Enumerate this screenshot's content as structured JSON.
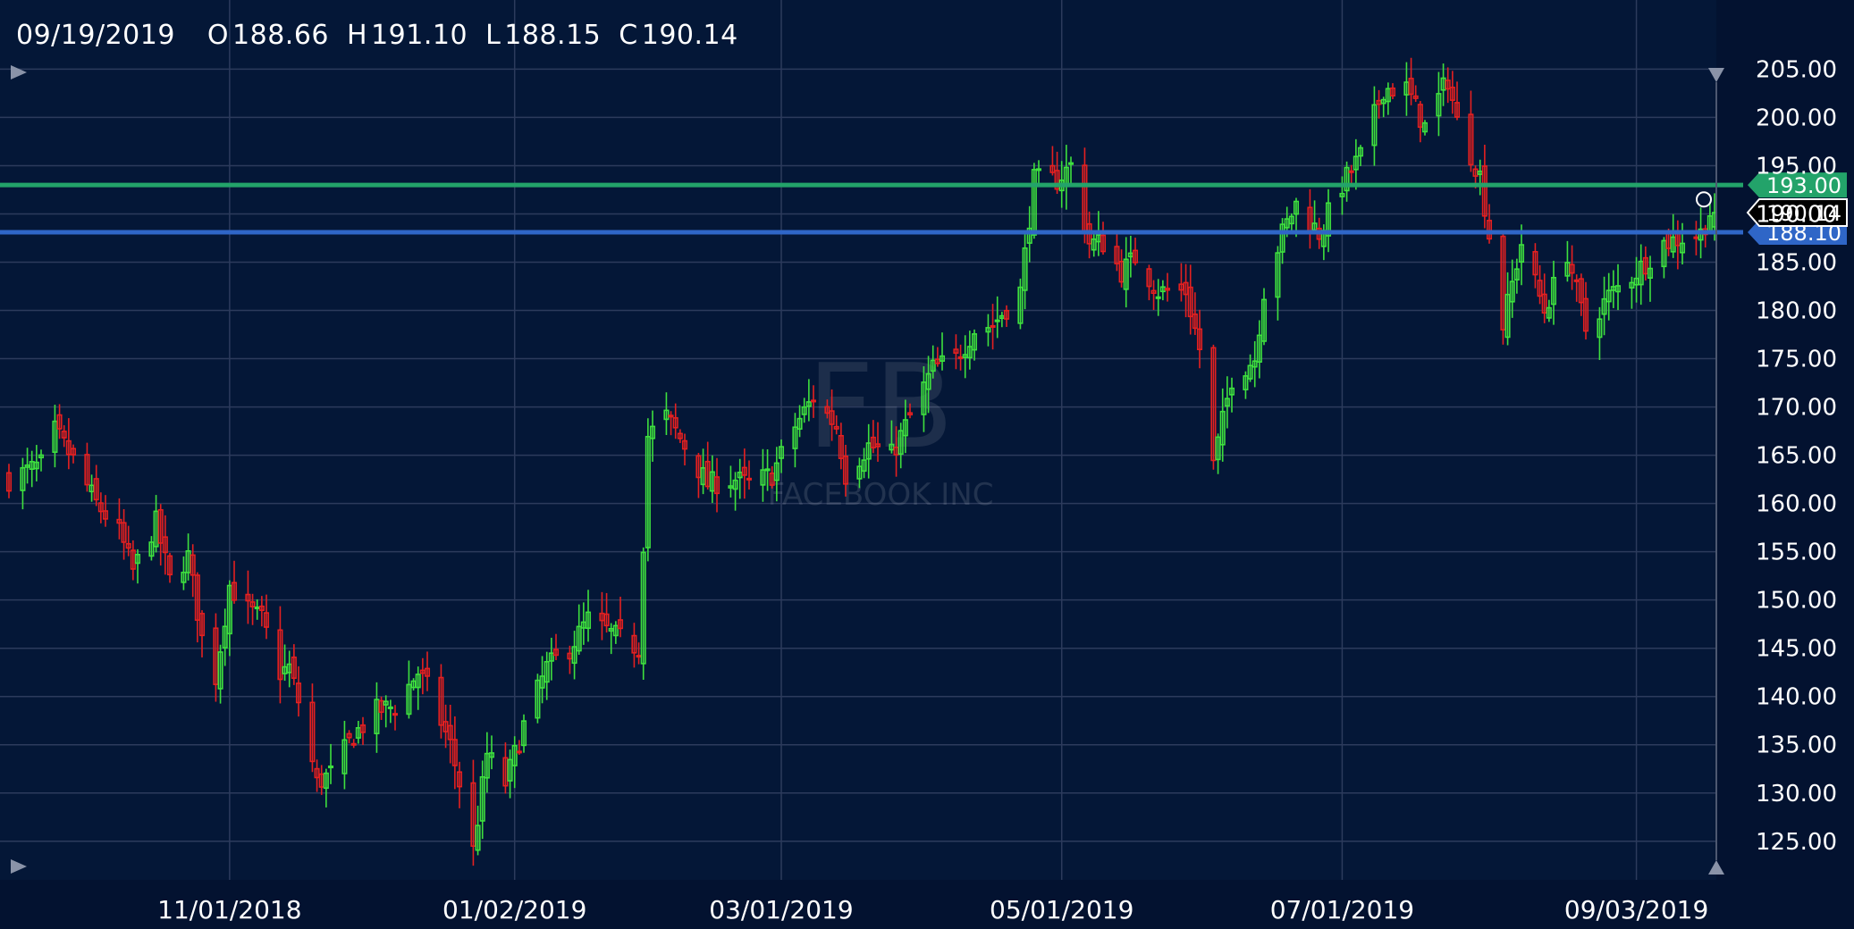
{
  "header": {
    "date": "09/19/2019",
    "open_label": "O",
    "open": "188.66",
    "high_label": "H",
    "high": "191.10",
    "low_label": "L",
    "low": "188.15",
    "close_label": "C",
    "close": "190.14"
  },
  "watermark": {
    "symbol": "FB",
    "name": "FACEBOOK INC"
  },
  "colors": {
    "background": "#041737",
    "grid": "#2c3b5c",
    "up": "#3ee03e",
    "down": "#e52020",
    "resistance": "#23a36a",
    "support": "#2f66c7",
    "axis_panel": "#031230"
  },
  "chart_data": {
    "type": "candlestick",
    "symbol": "FB",
    "ylim": [
      121,
      208
    ],
    "y_ticks": [
      "125.00",
      "130.00",
      "135.00",
      "140.00",
      "145.00",
      "150.00",
      "155.00",
      "160.00",
      "165.00",
      "170.00",
      "175.00",
      "180.00",
      "185.00",
      "190.00",
      "195.00",
      "200.00",
      "205.00"
    ],
    "x_range": [
      "2018-09-14",
      "2019-09-20"
    ],
    "x_ticks": [
      {
        "date": "2018-11-01",
        "label": "11/01/2018"
      },
      {
        "date": "2019-01-02",
        "label": "01/02/2019"
      },
      {
        "date": "2019-03-01",
        "label": "03/01/2019"
      },
      {
        "date": "2019-05-01",
        "label": "05/01/2019"
      },
      {
        "date": "2019-07-01",
        "label": "07/01/2019"
      },
      {
        "date": "2019-09-03",
        "label": "09/03/2019"
      }
    ],
    "grid": true,
    "horizontal_lines": [
      {
        "value": 193.0,
        "label": "193.00",
        "color": "#23a36a"
      },
      {
        "value": 188.1,
        "label": "188.10",
        "color": "#2f66c7"
      }
    ],
    "last_price": {
      "value": 190.14,
      "label": "190.14"
    },
    "series": [
      {
        "close_points": [
          [
            "2018-09-14",
            162.5
          ],
          [
            "2018-09-21",
            164.0
          ],
          [
            "2018-09-24",
            167.5
          ],
          [
            "2018-09-28",
            164.5
          ],
          [
            "2018-10-03",
            160.0
          ],
          [
            "2018-10-08",
            157.0
          ],
          [
            "2018-10-11",
            153.0
          ],
          [
            "2018-10-16",
            158.0
          ],
          [
            "2018-10-19",
            152.0
          ],
          [
            "2018-10-23",
            154.5
          ],
          [
            "2018-10-26",
            146.0
          ],
          [
            "2018-10-29",
            142.0
          ],
          [
            "2018-11-01",
            151.5
          ],
          [
            "2018-11-05",
            149.0
          ],
          [
            "2018-11-08",
            148.0
          ],
          [
            "2018-11-12",
            142.5
          ],
          [
            "2018-11-14",
            143.0
          ],
          [
            "2018-11-16",
            139.5
          ],
          [
            "2018-11-20",
            131.0
          ],
          [
            "2018-11-23",
            132.0
          ],
          [
            "2018-11-28",
            136.0
          ],
          [
            "2018-12-03",
            138.5
          ],
          [
            "2018-12-07",
            139.0
          ],
          [
            "2018-12-12",
            142.5
          ],
          [
            "2018-12-14",
            141.0
          ],
          [
            "2018-12-19",
            135.0
          ],
          [
            "2018-12-21",
            131.0
          ],
          [
            "2018-12-24",
            124.0
          ],
          [
            "2018-12-27",
            134.0
          ],
          [
            "2018-12-31",
            131.0
          ],
          [
            "2019-01-04",
            137.0
          ],
          [
            "2019-01-09",
            143.0
          ],
          [
            "2019-01-14",
            145.0
          ],
          [
            "2019-01-18",
            148.0
          ],
          [
            "2019-01-23",
            146.5
          ],
          [
            "2019-01-25",
            146.0
          ],
          [
            "2019-01-29",
            145.0
          ],
          [
            "2019-01-31",
            167.0
          ],
          [
            "2019-02-04",
            169.0
          ],
          [
            "2019-02-08",
            166.0
          ],
          [
            "2019-02-13",
            162.0
          ],
          [
            "2019-02-19",
            162.5
          ],
          [
            "2019-02-22",
            162.0
          ],
          [
            "2019-02-27",
            163.0
          ],
          [
            "2019-03-04",
            168.0
          ],
          [
            "2019-03-08",
            171.0
          ],
          [
            "2019-03-13",
            168.0
          ],
          [
            "2019-03-15",
            163.0
          ],
          [
            "2019-03-20",
            166.0
          ],
          [
            "2019-03-25",
            165.0
          ],
          [
            "2019-03-29",
            169.0
          ],
          [
            "2019-04-03",
            174.0
          ],
          [
            "2019-04-08",
            175.0
          ],
          [
            "2019-04-12",
            178.0
          ],
          [
            "2019-04-16",
            178.5
          ],
          [
            "2019-04-22",
            182.0
          ],
          [
            "2019-04-25",
            193.5
          ],
          [
            "2019-04-30",
            193.5
          ],
          [
            "2019-05-03",
            195.0
          ],
          [
            "2019-05-07",
            187.0
          ],
          [
            "2019-05-10",
            187.0
          ],
          [
            "2019-05-14",
            184.0
          ],
          [
            "2019-05-17",
            185.5
          ],
          [
            "2019-05-22",
            182.0
          ],
          [
            "2019-05-28",
            182.0
          ],
          [
            "2019-05-31",
            176.0
          ],
          [
            "2019-06-03",
            164.0
          ],
          [
            "2019-06-07",
            173.0
          ],
          [
            "2019-06-12",
            175.0
          ],
          [
            "2019-06-14",
            182.0
          ],
          [
            "2019-06-18",
            188.0
          ],
          [
            "2019-06-21",
            191.0
          ],
          [
            "2019-06-26",
            188.0
          ],
          [
            "2019-07-01",
            193.0
          ],
          [
            "2019-07-05",
            196.0
          ],
          [
            "2019-07-10",
            203.0
          ],
          [
            "2019-07-15",
            203.0
          ],
          [
            "2019-07-19",
            199.0
          ],
          [
            "2019-07-24",
            204.0
          ],
          [
            "2019-07-26",
            199.5
          ],
          [
            "2019-07-31",
            194.0
          ],
          [
            "2019-08-05",
            178.5
          ],
          [
            "2019-08-09",
            187.0
          ],
          [
            "2019-08-14",
            180.0
          ],
          [
            "2019-08-19",
            186.0
          ],
          [
            "2019-08-23",
            178.0
          ],
          [
            "2019-08-28",
            181.5
          ],
          [
            "2019-09-03",
            184.0
          ],
          [
            "2019-09-09",
            187.0
          ],
          [
            "2019-09-13",
            187.5
          ],
          [
            "2019-09-17",
            188.0
          ],
          [
            "2019-09-19",
            190.14
          ]
        ]
      }
    ]
  }
}
